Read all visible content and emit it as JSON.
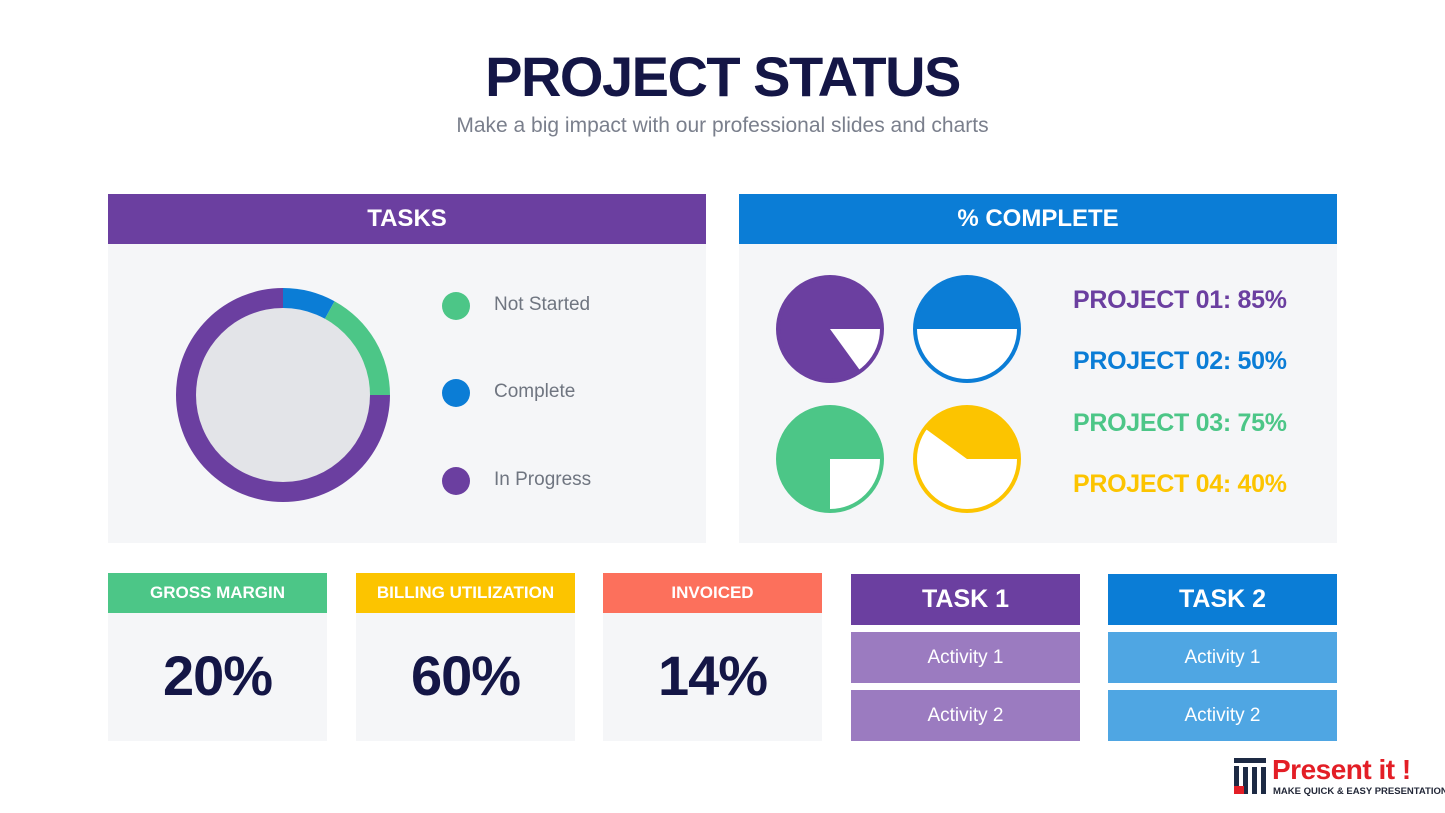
{
  "header": {
    "title": "PROJECT STATUS",
    "subtitle": "Make a big impact with our professional slides and charts"
  },
  "colors": {
    "purple": "#6b3fa0",
    "blue": "#0b7dd6",
    "green": "#4cc687",
    "yellow": "#fcc400",
    "coral": "#fc705c",
    "navy": "#141646",
    "panel_bg": "#f5f6f8",
    "light_purple": "#9b7bc0",
    "light_blue": "#4fa6e3"
  },
  "tasks_panel": {
    "heading": "TASKS",
    "legend": [
      {
        "label": "Not Started",
        "color": "#4cc687"
      },
      {
        "label": "Complete",
        "color": "#0b7dd6"
      },
      {
        "label": "In Progress",
        "color": "#6b3fa0"
      }
    ]
  },
  "complete_panel": {
    "heading": "% COMPLETE",
    "projects": [
      {
        "label": "PROJECT 01: 85%",
        "color": "#6b3fa0"
      },
      {
        "label": "PROJECT 02: 50%",
        "color": "#0b7dd6"
      },
      {
        "label": "PROJECT 03: 75%",
        "color": "#4cc687"
      },
      {
        "label": "PROJECT 04: 40%",
        "color": "#fcc400"
      }
    ]
  },
  "chart_data": [
    {
      "type": "pie",
      "subtype": "donut",
      "title": "TASKS",
      "categories": [
        "Complete",
        "Not Started",
        "In Progress"
      ],
      "values": [
        8,
        17,
        75
      ],
      "colors": [
        "#0b7dd6",
        "#4cc687",
        "#6b3fa0"
      ]
    },
    {
      "type": "pie",
      "title": "% COMPLETE",
      "categories": [
        "PROJECT 01",
        "PROJECT 02",
        "PROJECT 03",
        "PROJECT 04"
      ],
      "values": [
        85,
        50,
        75,
        40
      ],
      "unit": "%",
      "colors": [
        "#6b3fa0",
        "#0b7dd6",
        "#4cc687",
        "#fcc400"
      ]
    }
  ],
  "kpis": [
    {
      "label": "GROSS MARGIN",
      "value": "20%",
      "color": "#4cc687"
    },
    {
      "label": "BILLING UTILIZATION",
      "value": "60%",
      "color": "#fcc400"
    },
    {
      "label": "INVOICED",
      "value": "14%",
      "color": "#fc705c"
    }
  ],
  "task_lists": [
    {
      "title": "TASK 1",
      "activities": [
        "Activity 1",
        "Activity 2"
      ],
      "color": "#6b3fa0",
      "row_color": "#9b7bc0"
    },
    {
      "title": "TASK 2",
      "activities": [
        "Activity 1",
        "Activity 2"
      ],
      "color": "#0b7dd6",
      "row_color": "#4fa6e3"
    }
  ],
  "logo": {
    "name": "Present it !",
    "tagline": "MAKE QUICK & EASY PRESENTATIONS"
  }
}
